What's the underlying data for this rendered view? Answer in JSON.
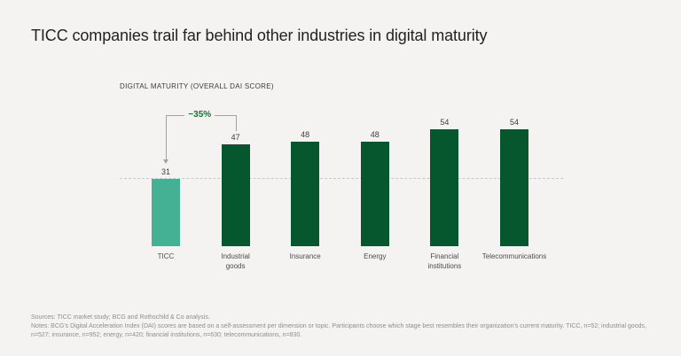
{
  "page": {
    "background_color": "#f4f3f1",
    "accent_dark_green": "#07572e",
    "accent_teal": "#44b094",
    "annotation_green": "#15713c"
  },
  "title": "TICC companies trail far behind other industries in digital maturity",
  "chart_data": {
    "type": "bar",
    "title": "DIGITAL MATURITY (OVERALL DAI SCORE)",
    "categories": [
      "TICC",
      "Industrial goods",
      "Insurance",
      "Energy",
      "Financial institutions",
      "Telecommunications"
    ],
    "category_labels": [
      "TICC",
      "Industrial\ngoods",
      "Insurance",
      "Energy",
      "Financial\ninstitutions",
      "Telecommunications"
    ],
    "values": [
      31,
      47,
      48,
      48,
      54,
      54
    ],
    "bar_colors": [
      "#44b094",
      "#07572e",
      "#07572e",
      "#07572e",
      "#07572e",
      "#07572e"
    ],
    "ylim": [
      0,
      60
    ],
    "grid": false,
    "legend": "none",
    "value_labels_shown": true,
    "reference_line": {
      "value": 31,
      "style": "dashed"
    },
    "annotation": {
      "label": "−35%",
      "from_category": "TICC",
      "to_category": "Industrial goods"
    }
  },
  "footer": {
    "sources": "Sources: TICC market study; BCG and Rothschild & Co analysis.",
    "notes": "Notes: BCG's Digital Acceleration Index (DAI) scores are based on a self-assessment per dimension or topic. Participants choose which stage best resembles their organization's current maturity. TICC, n=52; industrial goods, n=527; insurance, n=952; energy, n=420; financial institutions, n=630; telecommunications, n=830."
  }
}
